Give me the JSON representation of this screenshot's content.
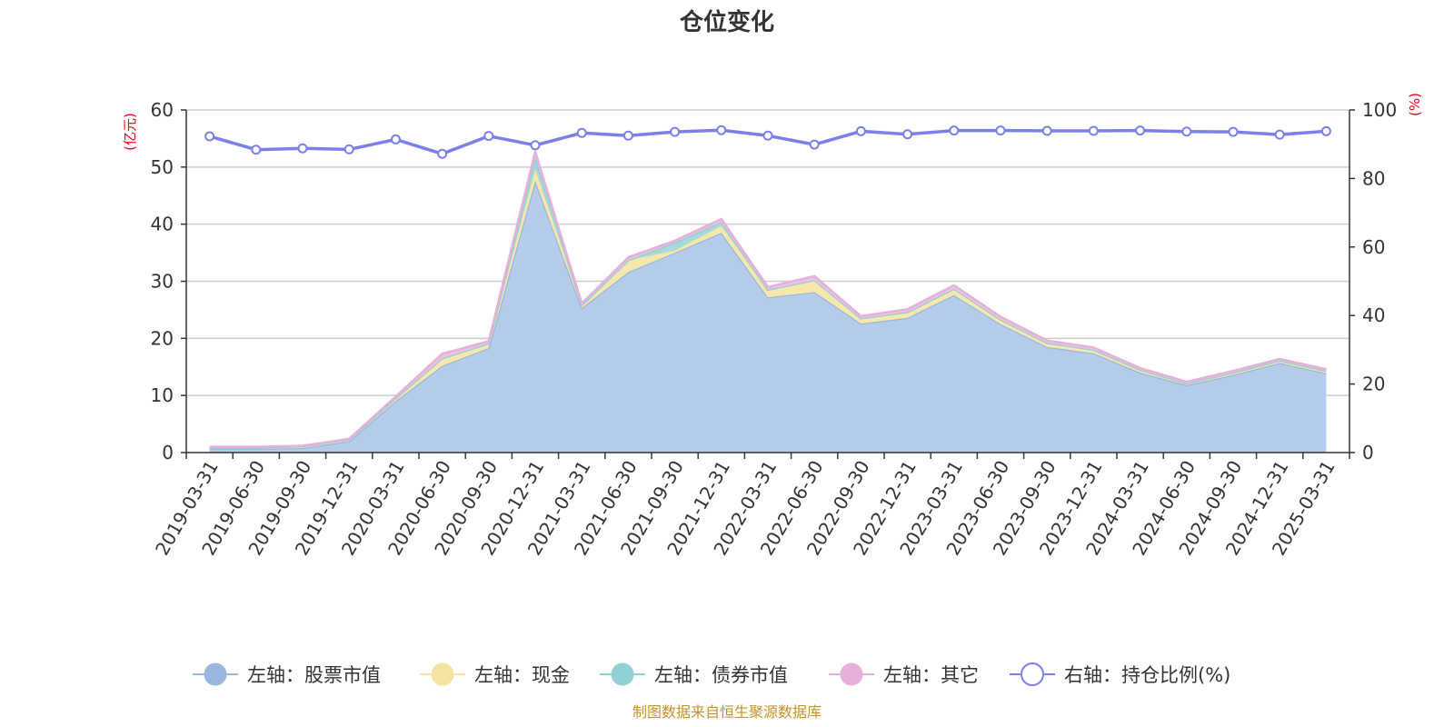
{
  "chart_data": {
    "type": "area",
    "title": "仓位变化",
    "source_note": "制图数据来自恒生聚源数据库",
    "left_axis": {
      "unit": "(亿元)",
      "ylim": [
        0,
        60
      ],
      "ticks": [
        0,
        10,
        20,
        30,
        40,
        50,
        60
      ]
    },
    "right_axis": {
      "unit": "(%)",
      "ylim": [
        0,
        100
      ],
      "ticks": [
        0,
        20,
        40,
        60,
        80,
        100
      ]
    },
    "categories": [
      "2019-03-31",
      "2019-06-30",
      "2019-09-30",
      "2019-12-31",
      "2020-03-31",
      "2020-06-30",
      "2020-09-30",
      "2020-12-31",
      "2021-03-31",
      "2021-06-30",
      "2021-09-30",
      "2021-12-31",
      "2022-03-31",
      "2022-06-30",
      "2022-09-30",
      "2022-12-31",
      "2023-03-31",
      "2023-06-30",
      "2023-09-30",
      "2023-12-31",
      "2024-03-31",
      "2024-06-30",
      "2024-09-30",
      "2024-12-31",
      "2025-03-31"
    ],
    "grid": true,
    "legend_position": "bottom",
    "series": [
      {
        "name": "左轴：股票市值",
        "axis": "left",
        "stack": true,
        "color": "#9ab6e0",
        "fill": "#b6cceb",
        "values": [
          0.7,
          0.7,
          0.8,
          2.0,
          9.0,
          15.2,
          18.3,
          47.6,
          25.3,
          31.6,
          35.0,
          38.5,
          27.2,
          28.1,
          22.6,
          23.6,
          27.6,
          22.5,
          18.5,
          17.4,
          14.0,
          11.8,
          13.6,
          15.7,
          13.9
        ]
      },
      {
        "name": "左轴：现金",
        "axis": "left",
        "stack": true,
        "color": "#f4e4a0",
        "fill": "#f6e8ad",
        "values": [
          0.2,
          0.2,
          0.3,
          0.3,
          0.5,
          1.3,
          0.8,
          2.0,
          0.5,
          2.1,
          0.4,
          1.2,
          1.3,
          2.1,
          0.9,
          1.0,
          1.1,
          0.8,
          0.7,
          0.6,
          0.5,
          0.3,
          0.4,
          0.4,
          0.4
        ]
      },
      {
        "name": "左轴：债券市值",
        "axis": "left",
        "stack": true,
        "color": "#92d0d3",
        "fill": "#a6d9dc",
        "values": [
          0,
          0,
          0,
          0,
          0,
          0,
          0,
          2.1,
          0,
          0,
          1.4,
          0.7,
          0,
          0,
          0,
          0,
          0,
          0,
          0,
          0,
          0,
          0,
          0,
          0,
          0
        ]
      },
      {
        "name": "左轴：其它",
        "axis": "left",
        "stack": true,
        "color": "#e6b0d9",
        "fill": "#ecc2e3",
        "values": [
          0.1,
          0.1,
          0.1,
          0.1,
          0.3,
          0.8,
          0.4,
          1.0,
          0.3,
          0.5,
          0.3,
          0.5,
          0.5,
          0.7,
          0.4,
          0.5,
          0.6,
          0.5,
          0.4,
          0.4,
          0.3,
          0.3,
          0.3,
          0.3,
          0.3
        ]
      },
      {
        "name": "右轴：持仓比例(%)",
        "axis": "right",
        "stack": false,
        "color": "#7a80e8",
        "values": [
          92.3,
          88.4,
          88.8,
          88.5,
          91.4,
          87.2,
          92.4,
          89.7,
          93.3,
          92.5,
          93.6,
          94.1,
          92.5,
          89.9,
          93.8,
          92.9,
          94.0,
          94.0,
          93.9,
          93.9,
          94.0,
          93.7,
          93.6,
          92.8,
          93.8
        ]
      }
    ]
  }
}
